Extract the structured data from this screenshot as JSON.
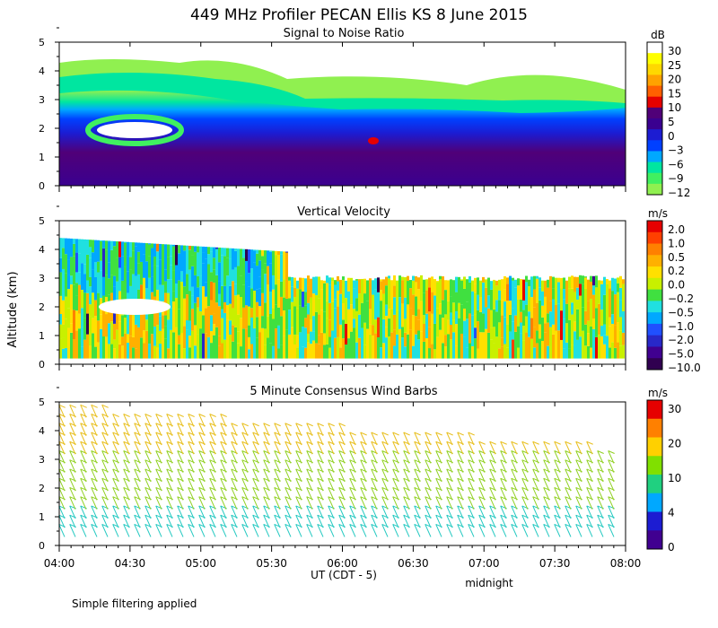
{
  "page": {
    "title": "449 MHz Profiler PECAN Ellis KS  8 June 2015",
    "y_axis_label": "Altitude (km)",
    "x_axis_label": "UT  (CDT - 5)",
    "x_annotation": "midnight",
    "footer": "Simple filtering applied"
  },
  "chart_data": [
    {
      "type": "heatmap",
      "title": "Signal to Noise Ratio",
      "xlabel": "UT  (CDT - 5)",
      "ylabel": "Altitude (km)",
      "xlim": [
        "04:00",
        "08:00"
      ],
      "ylim": [
        0,
        5
      ],
      "x_ticks": [
        "04:00",
        "04:30",
        "05:00",
        "05:30",
        "06:00",
        "06:30",
        "07:00",
        "07:30",
        "08:00"
      ],
      "y_ticks": [
        "0",
        "1",
        "2",
        "3",
        "4",
        "5"
      ],
      "colorbar": {
        "unit": "dB",
        "labels": [
          "30",
          "25",
          "20",
          "15",
          "10",
          "5",
          "0",
          "−3",
          "−6",
          "−9",
          "−12"
        ],
        "colors": [
          "#ffffff",
          "#ffff00",
          "#ffd800",
          "#ffa200",
          "#ff6000",
          "#e60000",
          "#500078",
          "#3a0090",
          "#1c1cd2",
          "#0040ff",
          "#00a8ff",
          "#00e6a0",
          "#40f060",
          "#90f050"
        ]
      },
      "bands": [
        {
          "level": "-12",
          "x": [
            "04:00",
            "08:00"
          ],
          "y": [
            3.5,
            4.5
          ]
        },
        {
          "level": "-9",
          "x": [
            "04:00",
            "08:00"
          ],
          "y": [
            2.8,
            3.8
          ]
        },
        {
          "level": "-3",
          "x": [
            "04:00",
            "08:00"
          ],
          "y": [
            2.0,
            3.0
          ]
        },
        {
          "level": "0",
          "x": [
            "04:00",
            "08:00"
          ],
          "y": [
            0.3,
            2.0
          ]
        },
        {
          "level": "10",
          "x": [
            "06:03",
            "06:05"
          ],
          "y": [
            1.5,
            1.7
          ]
        }
      ]
    },
    {
      "type": "heatmap",
      "title": "Vertical Velocity",
      "xlabel": "UT  (CDT - 5)",
      "ylabel": "Altitude (km)",
      "xlim": [
        "04:00",
        "08:00"
      ],
      "ylim": [
        0,
        5
      ],
      "x_ticks": [
        "04:00",
        "04:30",
        "05:00",
        "05:30",
        "06:00",
        "06:30",
        "07:00",
        "07:30",
        "08:00"
      ],
      "y_ticks": [
        "0",
        "1",
        "2",
        "3",
        "4",
        "5"
      ],
      "colorbar": {
        "unit": "m/s",
        "labels": [
          "2.0",
          "1.0",
          "0.5",
          "0.2",
          "0.0",
          "−0.2",
          "−0.5",
          "−1.0",
          "−2.0",
          "−5.0",
          "−10.0"
        ],
        "colors": [
          "#e60000",
          "#ff4000",
          "#ff8000",
          "#ffb000",
          "#ffe000",
          "#c8f000",
          "#40e040",
          "#20e0e0",
          "#00a8ff",
          "#2050ff",
          "#2828c8",
          "#400090",
          "#300050"
        ]
      },
      "bands": [
        {
          "level": "-0.5",
          "x": [
            "04:00",
            "05:30"
          ],
          "y": [
            2.0,
            4.3
          ]
        },
        {
          "level": "0.0",
          "x": [
            "05:30",
            "07:55"
          ],
          "y": [
            0.2,
            2.9
          ]
        },
        {
          "level": "-0.2",
          "x": [
            "04:00",
            "07:55"
          ],
          "y": [
            0.2,
            4.3
          ]
        }
      ]
    },
    {
      "type": "scatter",
      "title": "5 Minute Consensus Wind Barbs",
      "xlabel": "UT  (CDT - 5)",
      "ylabel": "Altitude (km)",
      "xlim": [
        "04:00",
        "08:00"
      ],
      "ylim": [
        0,
        5
      ],
      "x_ticks": [
        "04:00",
        "04:30",
        "05:00",
        "05:30",
        "06:00",
        "06:30",
        "07:00",
        "07:30",
        "08:00"
      ],
      "y_ticks": [
        "0",
        "1",
        "2",
        "3",
        "4",
        "5"
      ],
      "colorbar": {
        "unit": "m/s",
        "labels": [
          "30",
          "20",
          "10",
          "4",
          "0"
        ],
        "colors": [
          "#e60000",
          "#ff8000",
          "#ffd000",
          "#80e000",
          "#20d080",
          "#00a8ff",
          "#1c1cd2",
          "#400090"
        ]
      },
      "wind_bands": [
        {
          "speed_ms": 12,
          "y": [
            3.0,
            4.7
          ],
          "color": "#e8c020"
        },
        {
          "speed_ms": 10,
          "y": [
            1.0,
            3.0
          ],
          "color": "#90d020"
        },
        {
          "speed_ms": 4,
          "y": [
            0.2,
            1.0
          ],
          "color": "#20c8c0"
        }
      ]
    }
  ]
}
